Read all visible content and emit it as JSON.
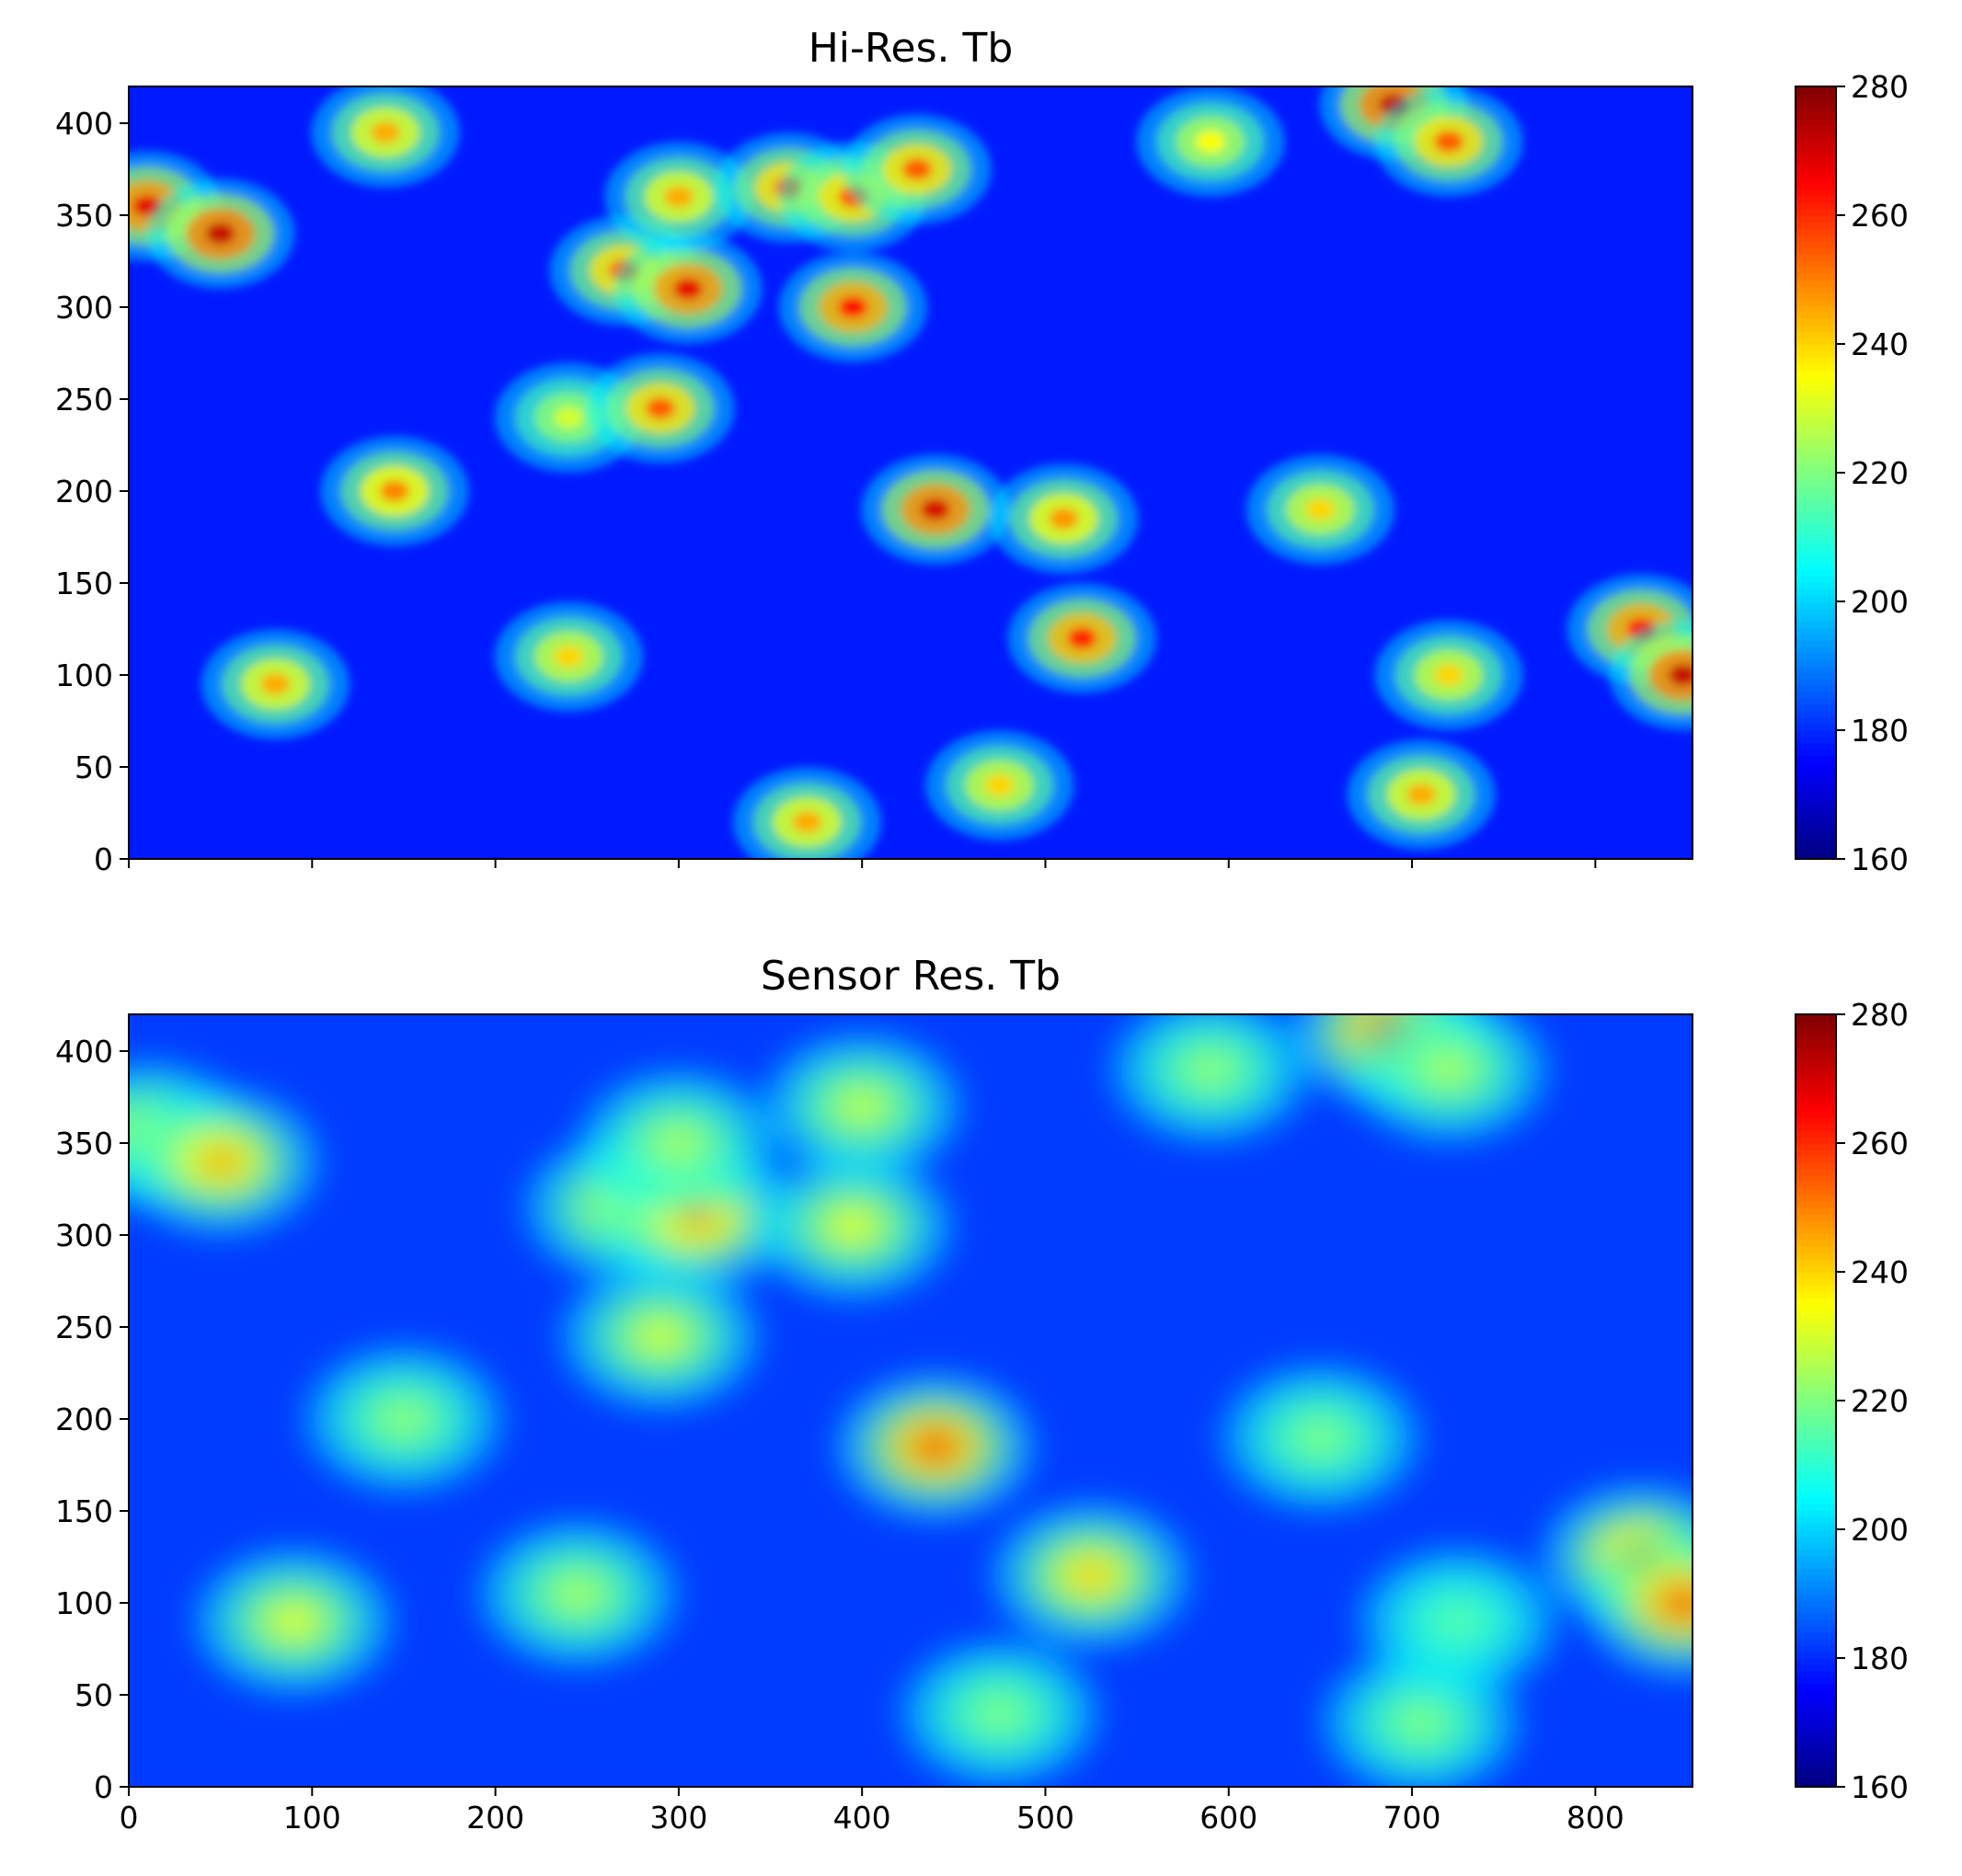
{
  "figure": {
    "panels": [
      {
        "title": "Hi-Res. Tb",
        "x_ticks": [
          "",
          "",
          "",
          "",
          "",
          "",
          "",
          ""
        ],
        "y_ticks": [
          "0",
          "50",
          "100",
          "150",
          "200",
          "250",
          "300",
          "350",
          "400"
        ],
        "colorbar_ticks": [
          "160",
          "180",
          "200",
          "220",
          "240",
          "260",
          "280"
        ]
      },
      {
        "title": "Sensor Res. Tb",
        "x_ticks": [
          "0",
          "100",
          "200",
          "300",
          "400",
          "500",
          "600",
          "700",
          "800"
        ],
        "y_ticks": [
          "0",
          "50",
          "100",
          "150",
          "200",
          "250",
          "300",
          "350",
          "400"
        ],
        "colorbar_ticks": [
          "160",
          "180",
          "200",
          "220",
          "240",
          "260",
          "280"
        ]
      }
    ]
  },
  "colors": {
    "colormap": "jet",
    "background": "#ffffff",
    "axis": "#000000"
  },
  "chart_data": [
    {
      "type": "heatmap",
      "title": "Hi-Res. Tb",
      "xlabel": "",
      "ylabel": "",
      "xlim": [
        0,
        853
      ],
      "ylim": [
        0,
        420
      ],
      "x_ticks": [
        0,
        100,
        200,
        300,
        400,
        500,
        600,
        700,
        800
      ],
      "y_ticks": [
        0,
        50,
        100,
        150,
        200,
        250,
        300,
        350,
        400
      ],
      "colorbar": {
        "min": 160,
        "max": 280,
        "ticks": [
          160,
          180,
          200,
          220,
          240,
          260,
          280
        ]
      },
      "background_value": 178,
      "hotspots": [
        {
          "x": 10,
          "y": 355,
          "peak": 268
        },
        {
          "x": 50,
          "y": 340,
          "peak": 272
        },
        {
          "x": 80,
          "y": 95,
          "peak": 245
        },
        {
          "x": 140,
          "y": 395,
          "peak": 245
        },
        {
          "x": 145,
          "y": 200,
          "peak": 250
        },
        {
          "x": 240,
          "y": 110,
          "peak": 240
        },
        {
          "x": 240,
          "y": 240,
          "peak": 230
        },
        {
          "x": 270,
          "y": 320,
          "peak": 255
        },
        {
          "x": 290,
          "y": 245,
          "peak": 255
        },
        {
          "x": 305,
          "y": 310,
          "peak": 268
        },
        {
          "x": 300,
          "y": 360,
          "peak": 245
        },
        {
          "x": 360,
          "y": 365,
          "peak": 255
        },
        {
          "x": 370,
          "y": 20,
          "peak": 245
        },
        {
          "x": 395,
          "y": 300,
          "peak": 265
        },
        {
          "x": 395,
          "y": 360,
          "peak": 255
        },
        {
          "x": 430,
          "y": 375,
          "peak": 255
        },
        {
          "x": 440,
          "y": 190,
          "peak": 270
        },
        {
          "x": 475,
          "y": 40,
          "peak": 240
        },
        {
          "x": 520,
          "y": 120,
          "peak": 262
        },
        {
          "x": 510,
          "y": 185,
          "peak": 248
        },
        {
          "x": 590,
          "y": 390,
          "peak": 235
        },
        {
          "x": 650,
          "y": 190,
          "peak": 240
        },
        {
          "x": 690,
          "y": 410,
          "peak": 272
        },
        {
          "x": 720,
          "y": 390,
          "peak": 255
        },
        {
          "x": 705,
          "y": 35,
          "peak": 245
        },
        {
          "x": 720,
          "y": 100,
          "peak": 240
        },
        {
          "x": 825,
          "y": 125,
          "peak": 265
        },
        {
          "x": 848,
          "y": 100,
          "peak": 272
        }
      ]
    },
    {
      "type": "heatmap",
      "title": "Sensor Res. Tb",
      "xlabel": "",
      "ylabel": "",
      "xlim": [
        0,
        853
      ],
      "ylim": [
        0,
        420
      ],
      "x_ticks": [
        0,
        100,
        200,
        300,
        400,
        500,
        600,
        700,
        800
      ],
      "y_ticks": [
        0,
        50,
        100,
        150,
        200,
        250,
        300,
        350,
        400
      ],
      "colorbar": {
        "min": 160,
        "max": 280,
        "ticks": [
          160,
          180,
          200,
          220,
          240,
          260,
          280
        ]
      },
      "background_value": 182,
      "hotspots": [
        {
          "x": 10,
          "y": 355,
          "peak": 228
        },
        {
          "x": 50,
          "y": 340,
          "peak": 245
        },
        {
          "x": 90,
          "y": 90,
          "peak": 232
        },
        {
          "x": 150,
          "y": 200,
          "peak": 222
        },
        {
          "x": 245,
          "y": 105,
          "peak": 225
        },
        {
          "x": 290,
          "y": 245,
          "peak": 230
        },
        {
          "x": 270,
          "y": 315,
          "peak": 232
        },
        {
          "x": 310,
          "y": 310,
          "peak": 248
        },
        {
          "x": 300,
          "y": 350,
          "peak": 225
        },
        {
          "x": 395,
          "y": 305,
          "peak": 232
        },
        {
          "x": 400,
          "y": 370,
          "peak": 228
        },
        {
          "x": 440,
          "y": 185,
          "peak": 258
        },
        {
          "x": 475,
          "y": 40,
          "peak": 220
        },
        {
          "x": 525,
          "y": 115,
          "peak": 240
        },
        {
          "x": 590,
          "y": 390,
          "peak": 222
        },
        {
          "x": 650,
          "y": 190,
          "peak": 220
        },
        {
          "x": 688,
          "y": 410,
          "peak": 258
        },
        {
          "x": 720,
          "y": 390,
          "peak": 225
        },
        {
          "x": 705,
          "y": 35,
          "peak": 220
        },
        {
          "x": 725,
          "y": 90,
          "peak": 215
        },
        {
          "x": 825,
          "y": 125,
          "peak": 250
        },
        {
          "x": 848,
          "y": 100,
          "peak": 258
        }
      ]
    }
  ]
}
